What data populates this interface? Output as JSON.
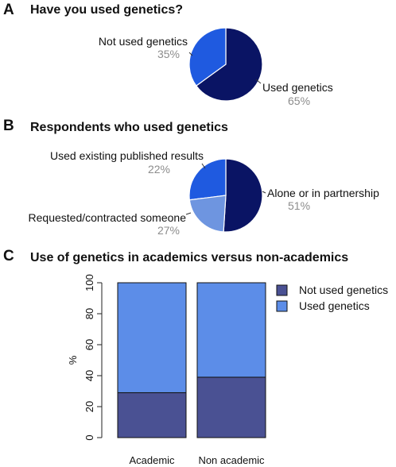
{
  "panels": {
    "a": {
      "letter": "A",
      "title": "Have you used genetics?"
    },
    "b": {
      "letter": "B",
      "title": "Respondents who used genetics"
    },
    "c": {
      "letter": "C",
      "title": "Use of genetics in academics versus non-academics"
    }
  },
  "colors": {
    "navy": "#0a1464",
    "blue": "#1f5ae0",
    "light_blue": "#6e95e0",
    "bar_dark": "#4a5193",
    "bar_light": "#5c8de8"
  },
  "chart_data": [
    {
      "type": "pie",
      "title": "Have you used genetics?",
      "slices": [
        {
          "label": "Used genetics",
          "value": 65,
          "pct_label": "65%",
          "color": "#0a1464"
        },
        {
          "label": "Not used genetics",
          "value": 35,
          "pct_label": "35%",
          "color": "#1f5ae0"
        }
      ]
    },
    {
      "type": "pie",
      "title": "Respondents who used genetics",
      "slices": [
        {
          "label": "Alone or in partnership",
          "value": 51,
          "pct_label": "51%",
          "color": "#0a1464"
        },
        {
          "label": "Requested/contracted someone",
          "value": 27,
          "pct_label": "27%",
          "color": "#1f5ae0"
        },
        {
          "label": "Used existing published results",
          "value": 22,
          "pct_label": "22%",
          "color": "#6e95e0"
        }
      ]
    },
    {
      "type": "bar",
      "stacked": true,
      "title": "Use of genetics in academics versus non-academics",
      "categories": [
        "Academic",
        "Non academic"
      ],
      "series": [
        {
          "name": "Not used genetics",
          "values": [
            29,
            39
          ],
          "color": "#4a5193"
        },
        {
          "name": "Used genetics",
          "values": [
            71,
            61
          ],
          "color": "#5c8de8"
        }
      ],
      "ylabel": "%",
      "ylim": [
        0,
        100
      ],
      "yticks": [
        "0",
        "20",
        "40",
        "60",
        "80",
        "100"
      ],
      "legend": "top-right",
      "grid": false
    }
  ]
}
